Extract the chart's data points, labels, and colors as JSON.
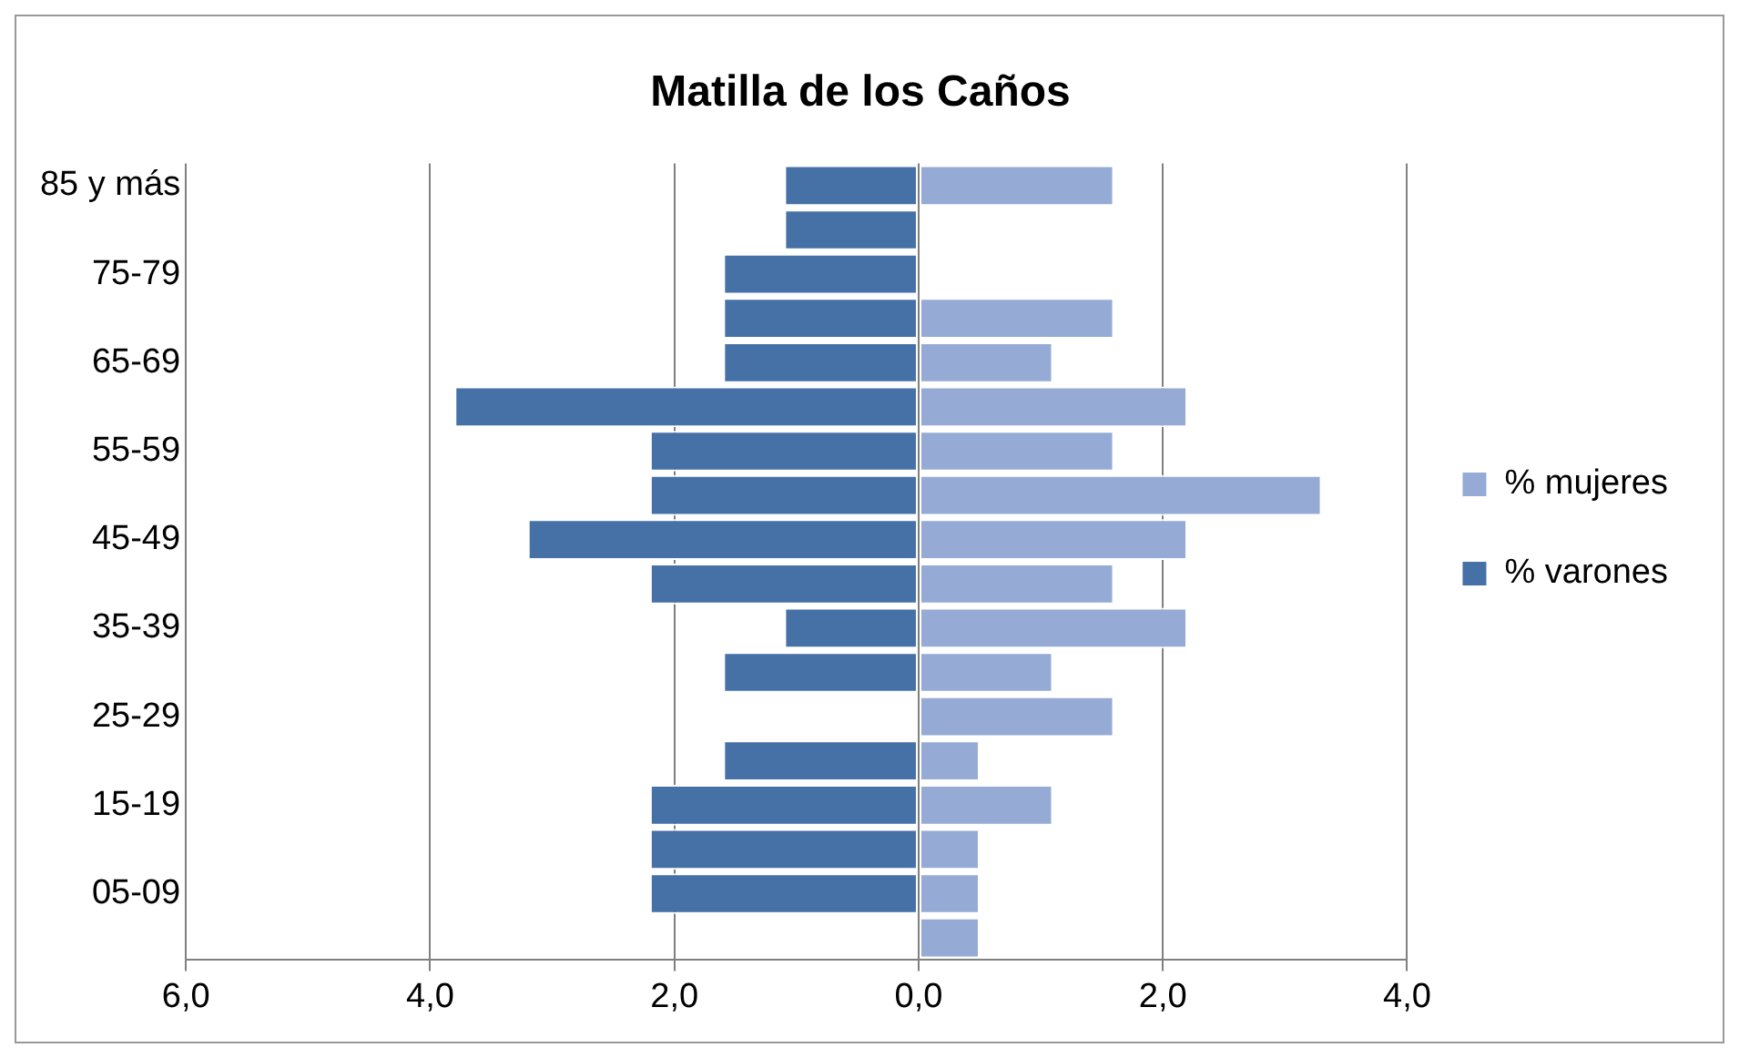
{
  "chart_data": {
    "type": "bar",
    "title": "Matilla de los Caños",
    "orientation": "horizontal",
    "stacked": true,
    "categories": [
      "85 y más",
      null,
      "75-79",
      null,
      "65-69",
      null,
      "55-59",
      null,
      "45-49",
      null,
      "35-39",
      null,
      "25-29",
      null,
      "15-19",
      null,
      "05-09",
      null
    ],
    "series": [
      {
        "name": "% mujeres",
        "color": "#95abd5",
        "values": [
          1.6,
          0,
          0,
          1.6,
          1.1,
          2.2,
          1.6,
          3.3,
          2.2,
          1.6,
          2.2,
          1.1,
          1.6,
          0.5,
          1.1,
          0.5,
          0.5,
          0.5
        ]
      },
      {
        "name": "% varones",
        "color": "#4571a7",
        "values": [
          -1.1,
          -1.1,
          -1.6,
          -1.6,
          -1.6,
          -3.8,
          -2.2,
          -2.2,
          -3.2,
          -2.2,
          -1.1,
          -1.6,
          0,
          -1.6,
          -2.2,
          -2.2,
          -2.2,
          0
        ]
      }
    ],
    "xlim": [
      -6,
      4
    ],
    "xticks": [
      {
        "value": -6,
        "label": "6,0"
      },
      {
        "value": -4,
        "label": "4,0"
      },
      {
        "value": -2,
        "label": "2,0"
      },
      {
        "value": 0,
        "label": "0,0"
      },
      {
        "value": 2,
        "label": "2,0"
      },
      {
        "value": 4,
        "label": "4,0"
      }
    ],
    "grid": "x",
    "legend": "right"
  }
}
